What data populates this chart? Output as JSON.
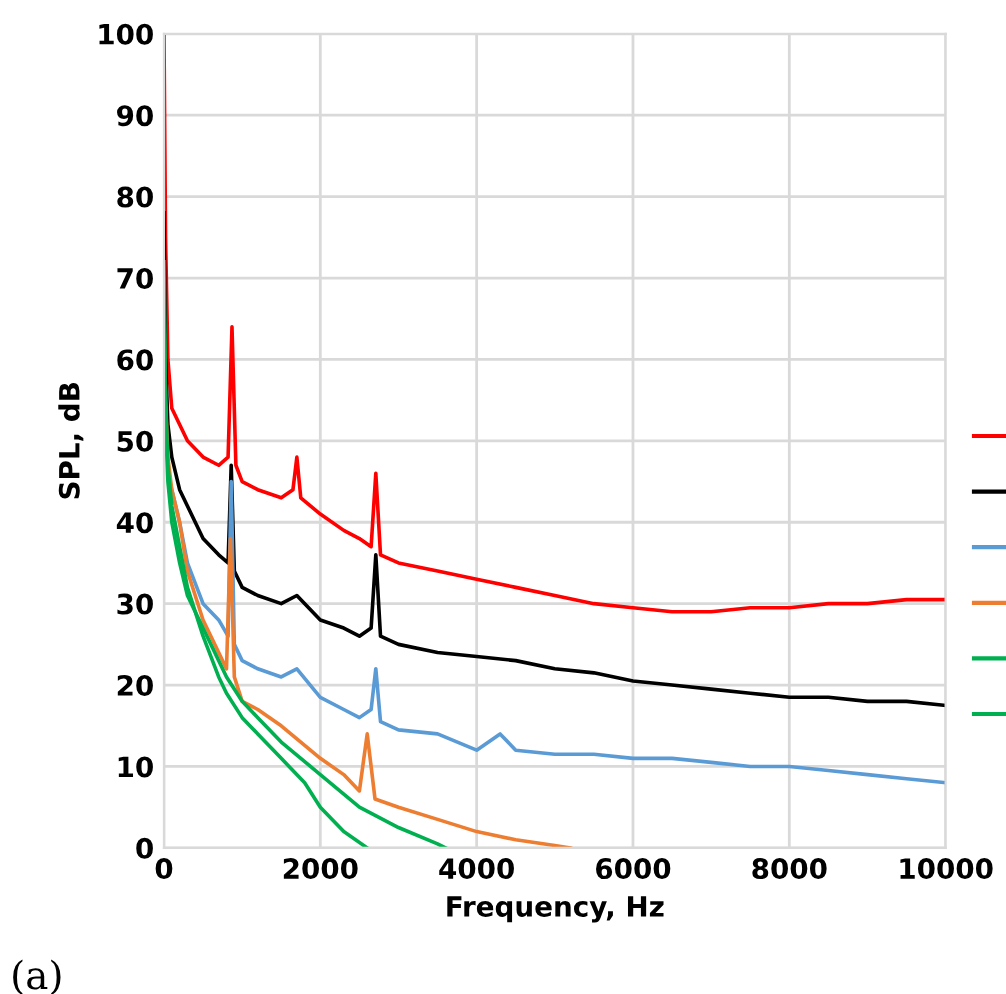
{
  "chart_data": {
    "type": "line",
    "xlabel": "Frequency, Hz",
    "ylabel": "SPL, dB",
    "xlim": [
      0,
      10000
    ],
    "xticks": [
      0,
      2000,
      4000,
      6000,
      8000,
      10000
    ],
    "ylim": [
      0,
      100
    ],
    "yticks": [
      0,
      10,
      20,
      30,
      40,
      50,
      60,
      70,
      80,
      90,
      100
    ],
    "grid": true,
    "marker": "none",
    "line_style": "solid",
    "annotations": [
      "(a)"
    ],
    "series": [
      {
        "color": "#ff0000",
        "x": [
          0,
          20,
          50,
          100,
          200,
          300,
          500,
          700,
          820,
          870,
          920,
          1000,
          1200,
          1500,
          1650,
          1700,
          1750,
          2000,
          2300,
          2500,
          2650,
          2710,
          2770,
          3000,
          3500,
          4000,
          4500,
          5000,
          5500,
          6000,
          6500,
          7000,
          7500,
          8000,
          8500,
          9000,
          9500,
          10000
        ],
        "values": [
          100,
          75,
          60,
          54,
          52,
          50,
          48,
          47,
          48,
          64,
          47,
          45,
          44,
          43,
          44,
          48,
          43,
          41,
          39,
          38,
          37,
          46,
          36,
          35,
          34,
          33,
          32,
          31,
          30,
          29.5,
          29,
          29,
          29.5,
          29.5,
          30,
          30,
          30.5,
          30.5
        ]
      },
      {
        "color": "#000000",
        "x": [
          0,
          20,
          50,
          100,
          200,
          300,
          500,
          700,
          820,
          860,
          900,
          1000,
          1200,
          1500,
          1700,
          2000,
          2300,
          2500,
          2650,
          2710,
          2770,
          3000,
          3500,
          4000,
          4500,
          5000,
          5500,
          6000,
          6500,
          7000,
          7500,
          8000,
          8500,
          9000,
          9500,
          10000
        ],
        "values": [
          78,
          60,
          52,
          48,
          44,
          42,
          38,
          36,
          35,
          47,
          34,
          32,
          31,
          30,
          31,
          28,
          27,
          26,
          27,
          36,
          26,
          25,
          24,
          23.5,
          23,
          22,
          21.5,
          20.5,
          20,
          19.5,
          19,
          18.5,
          18.5,
          18,
          18,
          17.5
        ]
      },
      {
        "color": "#5b9bd5",
        "x": [
          100,
          200,
          300,
          500,
          700,
          820,
          860,
          900,
          1000,
          1200,
          1500,
          1700,
          2000,
          2300,
          2500,
          2650,
          2710,
          2770,
          3000,
          3500,
          4000,
          4300,
          4500,
          5000,
          5500,
          6000,
          6500,
          7000,
          7500,
          8000,
          8500,
          9000,
          9500,
          10000
        ],
        "values": [
          44,
          40,
          35,
          30,
          28,
          26,
          45,
          25,
          23,
          22,
          21,
          22,
          18.5,
          17,
          16,
          17,
          22,
          15.5,
          14.5,
          14,
          12,
          14,
          12,
          11.5,
          11.5,
          11,
          11,
          10.5,
          10,
          10,
          9.5,
          9,
          8.5,
          8
        ]
      },
      {
        "color": "#ed7d31",
        "x": [
          0,
          20,
          50,
          100,
          200,
          300,
          500,
          700,
          800,
          850,
          900,
          1000,
          1200,
          1500,
          2000,
          2300,
          2500,
          2600,
          2700,
          3000,
          3500,
          4000,
          4500,
          5000,
          5200
        ],
        "values": [
          65,
          55,
          48,
          44,
          40,
          34,
          28,
          24,
          22,
          38,
          21,
          18,
          17,
          15,
          11,
          9,
          7,
          14,
          6,
          5,
          3.5,
          2,
          1,
          0.3,
          0
        ]
      },
      {
        "color": "#00b050",
        "x": [
          0,
          20,
          50,
          100,
          200,
          300,
          500,
          700,
          800,
          1000,
          1200,
          1500,
          1800,
          2000,
          2300,
          2600
        ],
        "values": [
          72,
          55,
          47,
          42,
          37,
          32,
          26,
          21,
          19,
          16,
          14,
          11,
          8,
          5,
          2,
          0
        ]
      },
      {
        "color": "#00b050",
        "x": [
          0,
          20,
          50,
          100,
          200,
          300,
          500,
          700,
          800,
          1000,
          1200,
          1500,
          2000,
          2500,
          3000,
          3500,
          3600
        ],
        "values": [
          68,
          52,
          45,
          40,
          35,
          31,
          27,
          23,
          21,
          18,
          16,
          13,
          9,
          5,
          2.5,
          0.5,
          0
        ]
      }
    ]
  }
}
